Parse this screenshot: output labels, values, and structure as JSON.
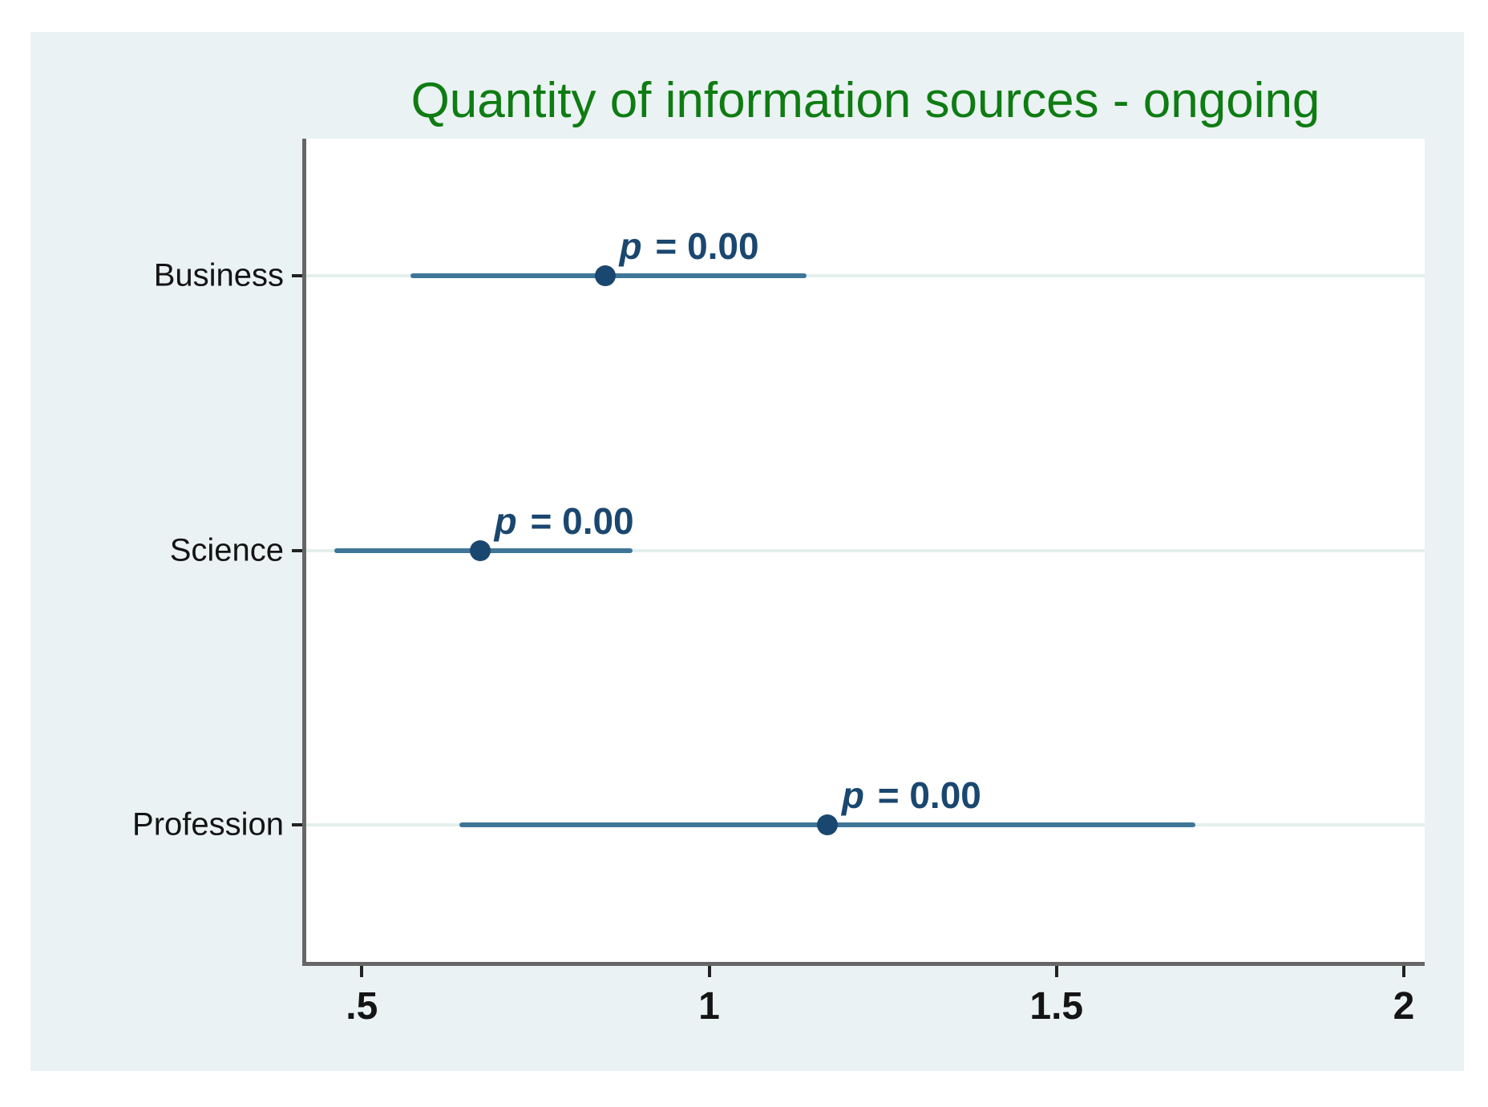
{
  "chart_data": {
    "type": "scatter",
    "title": "Quantity of information sources - ongoing",
    "orientation": "horizontal",
    "categories": [
      "Business",
      "Science",
      "Profession"
    ],
    "points": [
      {
        "category": "Business",
        "estimate": 0.85,
        "ci_low": 0.57,
        "ci_high": 1.14,
        "annotation": "p = 0.00"
      },
      {
        "category": "Science",
        "estimate": 0.67,
        "ci_low": 0.46,
        "ci_high": 0.89,
        "annotation": "p = 0.00"
      },
      {
        "category": "Profession",
        "estimate": 1.17,
        "ci_low": 0.64,
        "ci_high": 1.7,
        "annotation": "p = 0.00"
      }
    ],
    "xlabel": "",
    "ylabel": "",
    "x_ticks": [
      {
        "label": ".5",
        "value": 0.5
      },
      {
        "label": "1",
        "value": 1.0
      },
      {
        "label": "1.5",
        "value": 1.5
      },
      {
        "label": "2",
        "value": 2.0
      }
    ],
    "xlim": [
      0.42,
      2.03
    ],
    "grid": "horizontal-category-gridlines",
    "legend": "none",
    "colors": {
      "background": "#eaf2f3",
      "plot_background": "#ffffff",
      "title": "#0e7c12",
      "marker": "#1a476f",
      "ci_line": "#3f7698",
      "annotation": "#1a476f",
      "axis": "#666666",
      "tick_mark": "#222222",
      "tick_text": "#141414",
      "gridline": "#e3efed"
    }
  }
}
